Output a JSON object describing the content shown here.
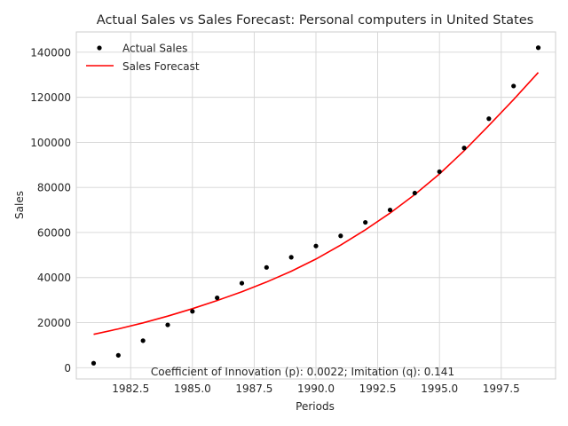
{
  "chart_data": {
    "type": "line",
    "title": "Actual Sales vs Sales Forecast: Personal computers in United States",
    "xlabel": "Periods",
    "ylabel": "Sales",
    "xlim": [
      1980.3,
      1999.7
    ],
    "ylim": [
      -5000,
      149000
    ],
    "xticks": [
      1982.5,
      1985.0,
      1987.5,
      1990.0,
      1992.5,
      1995.0,
      1997.5
    ],
    "xtick_labels": [
      "1982.5",
      "1985.0",
      "1987.5",
      "1990.0",
      "1992.5",
      "1995.0",
      "1997.5"
    ],
    "yticks": [
      0,
      20000,
      40000,
      60000,
      80000,
      100000,
      120000,
      140000
    ],
    "ytick_labels": [
      "0",
      "20000",
      "40000",
      "60000",
      "80000",
      "100000",
      "120000",
      "140000"
    ],
    "grid": true,
    "legend_position": "top-left",
    "annotation": "Coefficient of Innovation (p): 0.0022; Imitation (q): 0.141",
    "series": [
      {
        "name": "Actual Sales",
        "kind": "scatter",
        "color": "#000000",
        "x": [
          1981,
          1982,
          1983,
          1984,
          1985,
          1986,
          1987,
          1988,
          1989,
          1990,
          1991,
          1992,
          1993,
          1994,
          1995,
          1996,
          1997,
          1998,
          1999
        ],
        "y": [
          2000,
          5500,
          12000,
          19000,
          25000,
          31000,
          37500,
          44500,
          49000,
          54000,
          58500,
          64500,
          70000,
          77500,
          87000,
          97500,
          110500,
          125000,
          142000
        ]
      },
      {
        "name": "Sales Forecast",
        "kind": "line",
        "color": "#ff0000",
        "x": [
          1981,
          1982,
          1983,
          1984,
          1985,
          1986,
          1987,
          1988,
          1989,
          1990,
          1991,
          1992,
          1993,
          1994,
          1995,
          1996,
          1997,
          1998,
          1999
        ],
        "y": [
          14800,
          17200,
          19900,
          22900,
          26200,
          29800,
          33700,
          38000,
          42800,
          48200,
          54400,
          61200,
          68600,
          76800,
          86000,
          96300,
          107500,
          119000,
          131000
        ]
      }
    ]
  }
}
